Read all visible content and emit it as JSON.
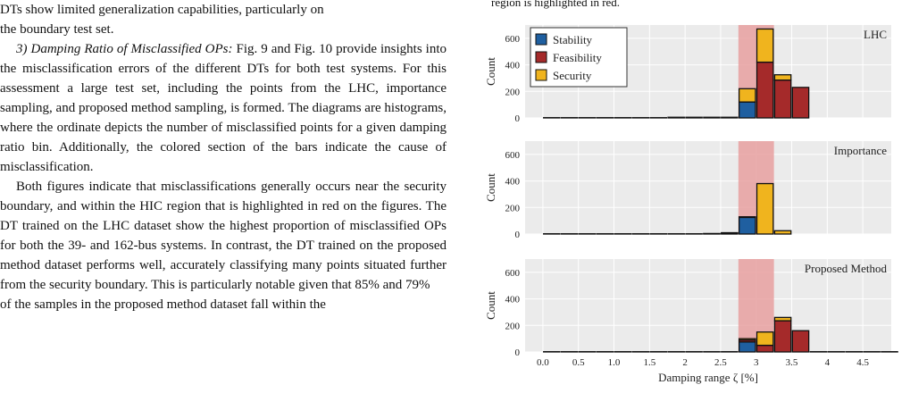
{
  "body_text": {
    "line_1": "DTs show limited generalization capabilities, particularly on",
    "line_2": "the boundary test set.",
    "subsection_heading": "3) Damping Ratio of Misclassified OPs:",
    "paragraph_1": "Fig. 9 and Fig. 10 provide insights into the misclassification errors of the different DTs for both test systems. For this assessment a large test set, including the points from the LHC, importance sampling, and proposed method sampling, is formed. The diagrams are histograms, where the ordinate depicts the number of misclassified points for a given damping ratio bin. Additionally, the colored section of the bars indicate the cause of misclassification.",
    "paragraph_2": "Both figures indicate that misclassifications generally occurs near the security boundary, and within the HIC region that is highlighted in red on the figures. The DT trained on the LHC dataset show the highest proportion of misclassified OPs for both the 39- and 162-bus systems. In contrast, the DT trained on the proposed method dataset performs well, accurately classifying many points situated further from the security boundary. This is particularly notable given that 85% and 79%",
    "cut_line": "of the samples in the proposed method dataset fall within the"
  },
  "figure_caption_fragment": "region is highlighted in red.",
  "chart_data": {
    "type": "bar",
    "stacked": true,
    "xlabel": "Damping range ζ [%]",
    "x_ticks": [
      "0.0",
      "0.5",
      "1.0",
      "1.5",
      "2",
      "2.5",
      "3",
      "3.5",
      "4",
      "4.5"
    ],
    "xlim": [
      -0.25,
      4.9
    ],
    "bins": [
      0.0,
      0.25,
      0.5,
      0.75,
      1.0,
      1.25,
      1.5,
      1.75,
      2.0,
      2.25,
      2.5,
      2.75,
      3.0,
      3.25,
      3.5,
      3.75,
      4.0,
      4.25,
      4.5,
      4.75
    ],
    "bin_width": 0.25,
    "hic_region": [
      2.75,
      3.25
    ],
    "legend": [
      {
        "name": "Stability",
        "color": "#1f5fa0"
      },
      {
        "name": "Feasibility",
        "color": "#a52a2a"
      },
      {
        "name": "Security",
        "color": "#f0b41e"
      }
    ],
    "colors": {
      "hic": "#e8a0a0",
      "panel_bg": "#ebebeb",
      "grid": "#ffffff"
    },
    "panels": [
      {
        "label": "LHC",
        "ylabel": "Count",
        "ylim": [
          0,
          700
        ],
        "y_ticks": [
          0,
          200,
          400,
          600
        ],
        "stability": [
          0,
          0,
          0,
          0,
          0,
          0,
          0,
          0,
          0,
          0,
          0,
          120,
          0,
          0,
          0,
          0,
          0,
          0,
          0,
          0
        ],
        "feasibility": [
          2,
          2,
          2,
          2,
          2,
          2,
          2,
          5,
          5,
          5,
          5,
          0,
          420,
          285,
          230,
          0,
          0,
          0,
          0,
          0
        ],
        "security": [
          0,
          0,
          0,
          0,
          0,
          0,
          0,
          0,
          0,
          0,
          0,
          100,
          250,
          40,
          0,
          0,
          0,
          0,
          0,
          0
        ]
      },
      {
        "label": "Importance",
        "ylabel": "Count",
        "ylim": [
          0,
          700
        ],
        "y_ticks": [
          0,
          200,
          400,
          600
        ],
        "stability": [
          2,
          2,
          2,
          2,
          2,
          2,
          2,
          2,
          2,
          2,
          5,
          125,
          0,
          0,
          0,
          0,
          0,
          0,
          0,
          0
        ],
        "feasibility": [
          0,
          0,
          0,
          0,
          0,
          0,
          0,
          0,
          0,
          0,
          0,
          0,
          0,
          0,
          0,
          0,
          0,
          0,
          0,
          0
        ],
        "security": [
          0,
          0,
          0,
          0,
          0,
          0,
          0,
          0,
          0,
          2,
          5,
          5,
          380,
          25,
          0,
          0,
          0,
          0,
          0,
          0
        ]
      },
      {
        "label": "Proposed Method",
        "ylabel": "Count",
        "ylim": [
          0,
          700
        ],
        "y_ticks": [
          0,
          200,
          400,
          600
        ],
        "stability": [
          0,
          0,
          0,
          0,
          0,
          0,
          0,
          0,
          0,
          0,
          0,
          75,
          0,
          0,
          0,
          0,
          0,
          0,
          0,
          0
        ],
        "feasibility": [
          2,
          2,
          2,
          2,
          2,
          2,
          2,
          2,
          2,
          2,
          2,
          15,
          50,
          235,
          160,
          2,
          2,
          2,
          2,
          2
        ],
        "security": [
          0,
          0,
          0,
          0,
          0,
          0,
          0,
          0,
          0,
          0,
          0,
          10,
          100,
          25,
          0,
          0,
          0,
          0,
          0,
          0
        ]
      }
    ]
  }
}
